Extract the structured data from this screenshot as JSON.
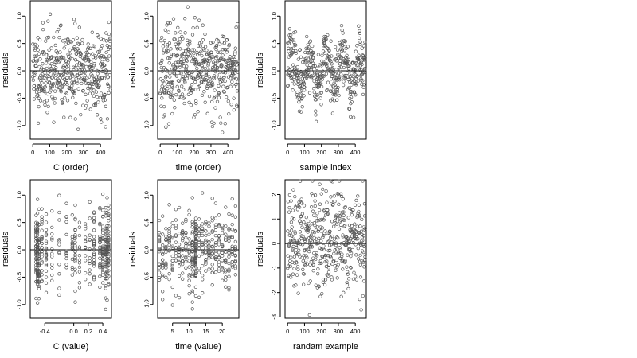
{
  "style": {
    "point_color": "#555555",
    "line_color": "#000000",
    "background": "#ffffff"
  },
  "chart_data": [
    {
      "type": "scatter",
      "title": "",
      "xlabel": "C (order)",
      "ylabel": "residuals",
      "xlim": [
        -15,
        465
      ],
      "ylim": [
        -1.25,
        1.28
      ],
      "xticks": [
        0,
        100,
        200,
        300,
        400
      ],
      "xtick_labels": [
        "0",
        "100",
        "200",
        "300",
        "400"
      ],
      "yticks": [
        -1.0,
        -0.5,
        0.0,
        0.5,
        1.0
      ],
      "ytick_labels": [
        "-1.0",
        "-0.5",
        "0.0",
        "0.5",
        "1.0"
      ],
      "hline": 0,
      "gen": {
        "kind": "order",
        "n": 460,
        "xmax": 459,
        "sd": 0.38,
        "seed": 11
      },
      "description_of_values": "about 460 residuals plotted against index, centered near 0 with spread roughly -1.2 to 1.2"
    },
    {
      "type": "scatter",
      "title": "",
      "xlabel": "time (order)",
      "ylabel": "residuals",
      "xlim": [
        -15,
        465
      ],
      "ylim": [
        -1.25,
        1.28
      ],
      "xticks": [
        0,
        100,
        200,
        300,
        400
      ],
      "xtick_labels": [
        "0",
        "100",
        "200",
        "300",
        "400"
      ],
      "yticks": [
        -1.0,
        -0.5,
        0.0,
        0.5,
        1.0
      ],
      "ytick_labels": [
        "-1.0",
        "-0.5",
        "0.0",
        "0.5",
        "1.0"
      ],
      "hline": 0,
      "gen": {
        "kind": "order",
        "n": 460,
        "xmax": 459,
        "sd": 0.38,
        "seed": 23
      }
    },
    {
      "type": "scatter",
      "title": "",
      "xlabel": "sample index",
      "ylabel": "residuals",
      "xlim": [
        -15,
        465
      ],
      "ylim": [
        -1.25,
        1.28
      ],
      "xticks": [
        0,
        100,
        200,
        300,
        400
      ],
      "xtick_labels": [
        "0",
        "100",
        "200",
        "300",
        "400"
      ],
      "yticks": [
        -1.0,
        -0.5,
        0.0,
        0.5,
        1.0
      ],
      "ytick_labels": [
        "-1.0",
        "-0.5",
        "0.0",
        "0.5",
        "1.0"
      ],
      "hline": 0,
      "gen": {
        "kind": "wave",
        "n": 460,
        "xmax": 459,
        "sd": 0.25,
        "seed": 37
      }
    },
    {
      "type": "scatter",
      "title": "",
      "xlabel": "C (value)",
      "ylabel": "residuals",
      "xlim": [
        -0.6,
        0.52
      ],
      "ylim": [
        -1.25,
        1.28
      ],
      "xticks": [
        -0.4,
        0.0,
        0.2,
        0.4
      ],
      "xtick_labels": [
        "-0.4",
        "0.0",
        "0.2",
        "0.4"
      ],
      "yticks": [
        -1.0,
        -0.5,
        0.0,
        0.5,
        1.0
      ],
      "ytick_labels": [
        "-1.0",
        "-0.5",
        "0.0",
        "0.5",
        "1.0"
      ],
      "hline": 0,
      "gen": {
        "kind": "groups",
        "n": 460,
        "sd": 0.38,
        "seed": 41,
        "levels": [
          -0.52,
          -0.5,
          -0.48,
          -0.44,
          -0.38,
          -0.3,
          -0.2,
          -0.1,
          -0.02,
          0.02,
          0.08,
          0.16,
          0.22,
          0.28,
          0.36,
          0.4,
          0.44,
          0.46,
          0.48
        ],
        "weights": [
          3,
          4,
          3,
          2,
          2,
          1,
          1,
          1,
          1,
          2,
          1,
          1,
          1,
          2,
          2,
          3,
          3,
          3,
          3
        ]
      }
    },
    {
      "type": "scatter",
      "title": "",
      "xlabel": "time (value)",
      "ylabel": "residuals",
      "xlim": [
        0.5,
        25
      ],
      "ylim": [
        -1.25,
        1.28
      ],
      "xticks": [
        5,
        10,
        15,
        20
      ],
      "xtick_labels": [
        "5",
        "10",
        "15",
        "20"
      ],
      "yticks": [
        -1.0,
        -0.5,
        0.0,
        0.5,
        1.0
      ],
      "ytick_labels": [
        "-1.0",
        "-0.5",
        "0.0",
        "0.5",
        "1.0"
      ],
      "hline": 0,
      "gen": {
        "kind": "groups",
        "n": 460,
        "sd": 0.38,
        "seed": 53,
        "levels": [
          1,
          2,
          3,
          4,
          5,
          6,
          7,
          8,
          9,
          10,
          11,
          12,
          13,
          14,
          15,
          16,
          17,
          18,
          19,
          20,
          21,
          22,
          23,
          24
        ],
        "weights": [
          1,
          1,
          1,
          1,
          1,
          1,
          1,
          1,
          1,
          1,
          2,
          4,
          1,
          1,
          1,
          1,
          1,
          1,
          1,
          1,
          1,
          1,
          1,
          1
        ]
      }
    },
    {
      "type": "scatter",
      "title": "",
      "xlabel": "randam example",
      "ylabel": "residuals",
      "xlim": [
        -15,
        465
      ],
      "ylim": [
        -3.05,
        2.6
      ],
      "xticks": [
        0,
        100,
        200,
        300,
        400
      ],
      "xtick_labels": [
        "0",
        "100",
        "200",
        "300",
        "400"
      ],
      "yticks": [
        -3,
        -2,
        -1,
        0,
        1,
        2
      ],
      "ytick_labels": [
        "-3",
        "-2",
        "-1",
        "0",
        "1",
        "2"
      ],
      "hline": 0,
      "gen": {
        "kind": "order",
        "n": 460,
        "xmax": 459,
        "sd": 1.0,
        "seed": 67
      }
    }
  ]
}
